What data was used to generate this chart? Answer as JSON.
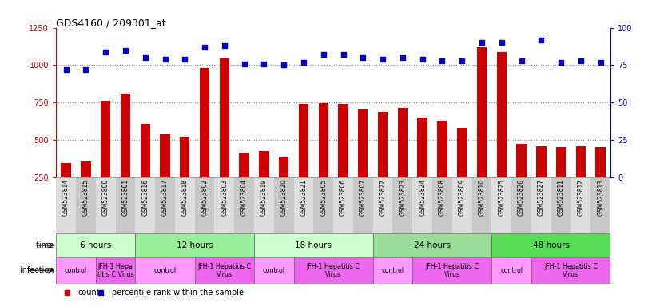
{
  "title": "GDS4160 / 209301_at",
  "samples": [
    "GSM523814",
    "GSM523815",
    "GSM523800",
    "GSM523801",
    "GSM523816",
    "GSM523817",
    "GSM523818",
    "GSM523802",
    "GSM523803",
    "GSM523804",
    "GSM523819",
    "GSM523820",
    "GSM523821",
    "GSM523805",
    "GSM523806",
    "GSM523807",
    "GSM523822",
    "GSM523823",
    "GSM523824",
    "GSM523808",
    "GSM523809",
    "GSM523810",
    "GSM523825",
    "GSM523826",
    "GSM523827",
    "GSM523811",
    "GSM523812",
    "GSM523813"
  ],
  "counts": [
    345,
    355,
    760,
    810,
    610,
    540,
    520,
    980,
    1050,
    415,
    425,
    390,
    740,
    745,
    740,
    710,
    690,
    715,
    650,
    630,
    580,
    1120,
    1090,
    475,
    460,
    455,
    460,
    455
  ],
  "percentile": [
    72,
    72,
    84,
    85,
    80,
    79,
    79,
    87,
    88,
    76,
    76,
    75,
    77,
    82,
    82,
    80,
    79,
    80,
    79,
    78,
    78,
    90,
    90,
    78,
    92,
    77,
    78,
    77
  ],
  "bar_color": "#cc0000",
  "dot_color": "#0000cc",
  "ylim_left": [
    250,
    1250
  ],
  "ylim_right": [
    0,
    100
  ],
  "yticks_left": [
    250,
    500,
    750,
    1000,
    1250
  ],
  "yticks_right": [
    0,
    25,
    50,
    75,
    100
  ],
  "grid_vals": [
    500,
    750,
    1000
  ],
  "bg_color": "#ffffff",
  "tick_bg_color": "#dddddd",
  "xlabel_color": "#cc0000",
  "ylabel_right_color": "#0000cc",
  "time_groups": [
    {
      "label": "6 hours",
      "start": 0,
      "end": 4,
      "color": "#ccffcc"
    },
    {
      "label": "12 hours",
      "start": 4,
      "end": 10,
      "color": "#99ee99"
    },
    {
      "label": "18 hours",
      "start": 10,
      "end": 16,
      "color": "#ccffcc"
    },
    {
      "label": "24 hours",
      "start": 16,
      "end": 22,
      "color": "#99dd99"
    },
    {
      "label": "48 hours",
      "start": 22,
      "end": 28,
      "color": "#55dd55"
    }
  ],
  "infection_groups": [
    {
      "label": "control",
      "start": 0,
      "end": 2,
      "color": "#ff99ff"
    },
    {
      "label": "JFH-1 Hepa\ntitis C Virus",
      "start": 2,
      "end": 4,
      "color": "#ee66ee"
    },
    {
      "label": "control",
      "start": 4,
      "end": 7,
      "color": "#ff99ff"
    },
    {
      "label": "JFH-1 Hepatitis C\nVirus",
      "start": 7,
      "end": 10,
      "color": "#ee66ee"
    },
    {
      "label": "control",
      "start": 10,
      "end": 12,
      "color": "#ff99ff"
    },
    {
      "label": "JFH-1 Hepatitis C\nVirus",
      "start": 12,
      "end": 16,
      "color": "#ee66ee"
    },
    {
      "label": "control",
      "start": 16,
      "end": 18,
      "color": "#ff99ff"
    },
    {
      "label": "JFH-1 Hepatitis C\nVirus",
      "start": 18,
      "end": 22,
      "color": "#ee66ee"
    },
    {
      "label": "control",
      "start": 22,
      "end": 24,
      "color": "#ff99ff"
    },
    {
      "label": "JFH-1 Hepatitis C\nVirus",
      "start": 24,
      "end": 28,
      "color": "#ee66ee"
    }
  ]
}
